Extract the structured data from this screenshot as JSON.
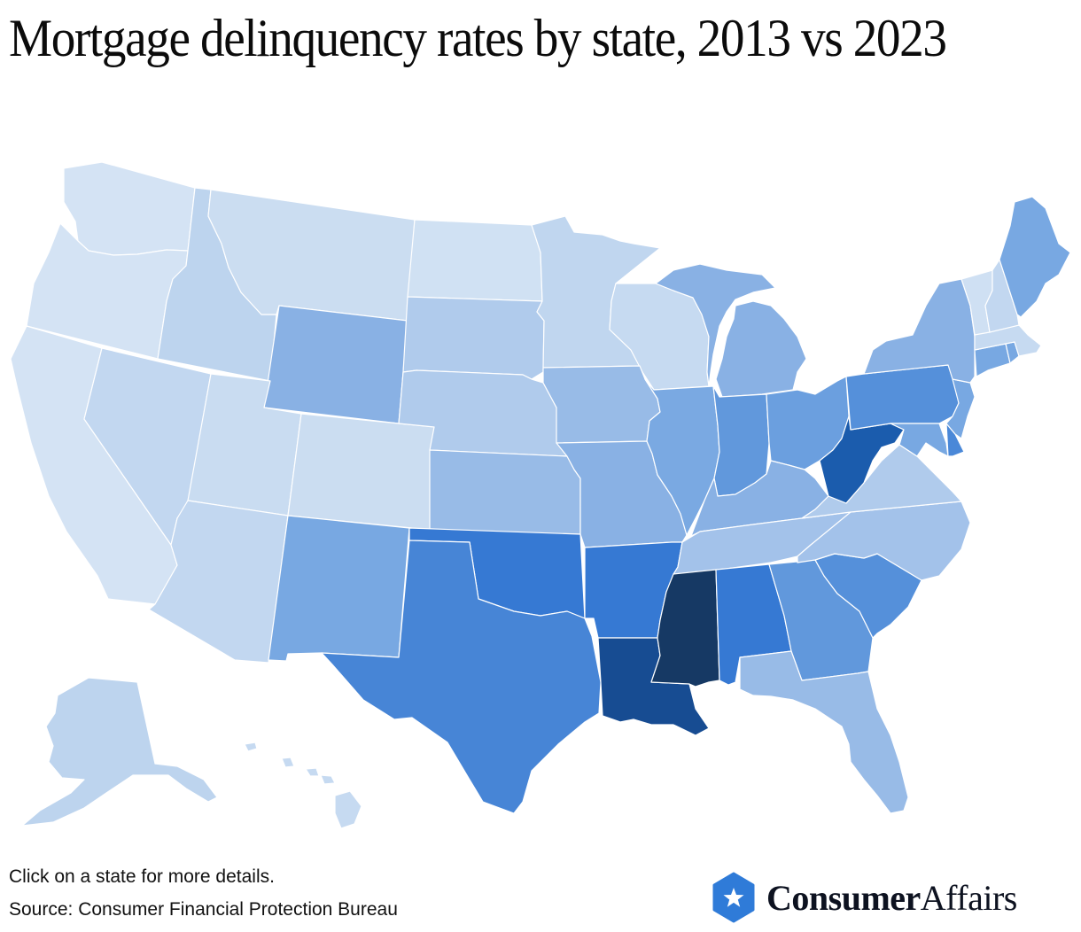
{
  "title": "Mortgage delinquency rates by state, 2013 vs 2023",
  "footer": {
    "note": "Click on a state for more details.",
    "source": "Source: Consumer Financial Protection Bureau"
  },
  "brand": {
    "name_bold": "Consumer",
    "name_light": "Affairs",
    "icon": "star-hexagon-icon",
    "color": "#2f7bd8"
  },
  "chart_data": {
    "type": "choropleth",
    "title": "Mortgage delinquency rates by state, 2013 vs 2023",
    "subtitle": "",
    "legend": "none shown; color intensity (light to dark blue) indicates relative delinquency measure",
    "color_scale": [
      "#d4e3f4",
      "#c9dcf1",
      "#bdd4ee",
      "#b0cbec",
      "#98bbe7",
      "#89b1e4",
      "#78a8e2",
      "#6198dc",
      "#5590da",
      "#4785d6",
      "#3679d3",
      "#1b5cad",
      "#174c92",
      "#163964"
    ],
    "states": [
      {
        "code": "WA",
        "name": "Washington",
        "color": "#d4e3f4"
      },
      {
        "code": "OR",
        "name": "Oregon",
        "color": "#d4e3f4"
      },
      {
        "code": "CA",
        "name": "California",
        "color": "#d4e3f4"
      },
      {
        "code": "ID",
        "name": "Idaho",
        "color": "#bdd4ee"
      },
      {
        "code": "NV",
        "name": "Nevada",
        "color": "#c2d7f0"
      },
      {
        "code": "MT",
        "name": "Montana",
        "color": "#cbddf1"
      },
      {
        "code": "WY",
        "name": "Wyoming",
        "color": "#89b1e4"
      },
      {
        "code": "UT",
        "name": "Utah",
        "color": "#c9dcf1"
      },
      {
        "code": "AZ",
        "name": "Arizona",
        "color": "#c2d7f0"
      },
      {
        "code": "CO",
        "name": "Colorado",
        "color": "#cbddf1"
      },
      {
        "code": "NM",
        "name": "New Mexico",
        "color": "#78a8e2"
      },
      {
        "code": "ND",
        "name": "North Dakota",
        "color": "#d0e1f3"
      },
      {
        "code": "SD",
        "name": "South Dakota",
        "color": "#b0cbec"
      },
      {
        "code": "NE",
        "name": "Nebraska",
        "color": "#b0cbec"
      },
      {
        "code": "KS",
        "name": "Kansas",
        "color": "#98bbe7"
      },
      {
        "code": "OK",
        "name": "Oklahoma",
        "color": "#3679d3"
      },
      {
        "code": "TX",
        "name": "Texas",
        "color": "#4785d6"
      },
      {
        "code": "MN",
        "name": "Minnesota",
        "color": "#c0d6ef"
      },
      {
        "code": "IA",
        "name": "Iowa",
        "color": "#98bbe7"
      },
      {
        "code": "MO",
        "name": "Missouri",
        "color": "#89b1e4"
      },
      {
        "code": "AR",
        "name": "Arkansas",
        "color": "#3679d3"
      },
      {
        "code": "LA",
        "name": "Louisiana",
        "color": "#174c92"
      },
      {
        "code": "WI",
        "name": "Wisconsin",
        "color": "#c6daf1"
      },
      {
        "code": "IL",
        "name": "Illinois",
        "color": "#7aa9e2"
      },
      {
        "code": "MI",
        "name": "Michigan",
        "color": "#89b1e4"
      },
      {
        "code": "IN",
        "name": "Indiana",
        "color": "#6198dc"
      },
      {
        "code": "OH",
        "name": "Ohio",
        "color": "#6b9fdf"
      },
      {
        "code": "KY",
        "name": "Kentucky",
        "color": "#89b1e4"
      },
      {
        "code": "TN",
        "name": "Tennessee",
        "color": "#a3c2ea"
      },
      {
        "code": "MS",
        "name": "Mississippi",
        "color": "#163964"
      },
      {
        "code": "AL",
        "name": "Alabama",
        "color": "#3679d3"
      },
      {
        "code": "GA",
        "name": "Georgia",
        "color": "#6198dc"
      },
      {
        "code": "FL",
        "name": "Florida",
        "color": "#98bbe7"
      },
      {
        "code": "SC",
        "name": "South Carolina",
        "color": "#5590da"
      },
      {
        "code": "NC",
        "name": "North Carolina",
        "color": "#a3c2ea"
      },
      {
        "code": "VA",
        "name": "Virginia",
        "color": "#b0cbec"
      },
      {
        "code": "WV",
        "name": "West Virginia",
        "color": "#1b5cad"
      },
      {
        "code": "PA",
        "name": "Pennsylvania",
        "color": "#5590da"
      },
      {
        "code": "MD",
        "name": "Maryland",
        "color": "#78a8e2"
      },
      {
        "code": "DE",
        "name": "Delaware",
        "color": "#4a88d8"
      },
      {
        "code": "NJ",
        "name": "New Jersey",
        "color": "#78a8e2"
      },
      {
        "code": "NY",
        "name": "New York",
        "color": "#89b1e4"
      },
      {
        "code": "CT",
        "name": "Connecticut",
        "color": "#78a8e2"
      },
      {
        "code": "RI",
        "name": "Rhode Island",
        "color": "#78a8e2"
      },
      {
        "code": "MA",
        "name": "Massachusetts",
        "color": "#c6daf1"
      },
      {
        "code": "VT",
        "name": "Vermont",
        "color": "#cfe0f3"
      },
      {
        "code": "NH",
        "name": "New Hampshire",
        "color": "#c2d7f0"
      },
      {
        "code": "ME",
        "name": "Maine",
        "color": "#78a8e2"
      },
      {
        "code": "AK",
        "name": "Alaska",
        "color": "#bdd4ee"
      },
      {
        "code": "HI",
        "name": "Hawaii",
        "color": "#c6daf1"
      }
    ]
  }
}
